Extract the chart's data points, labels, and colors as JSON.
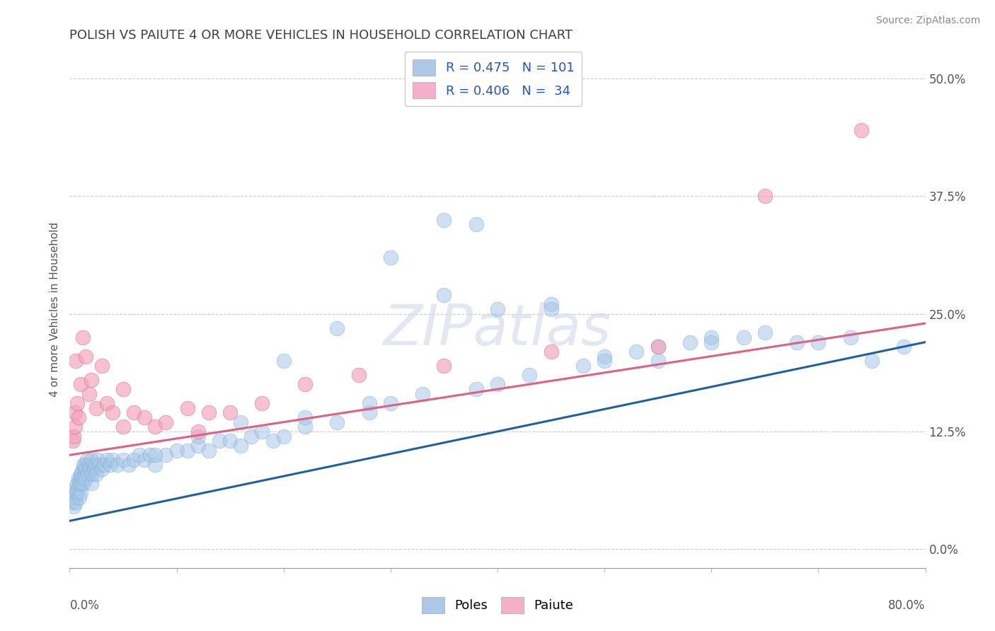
{
  "title": "POLISH VS PAIUTE 4 OR MORE VEHICLES IN HOUSEHOLD CORRELATION CHART",
  "source": "Source: ZipAtlas.com",
  "ylabel": "4 or more Vehicles in Household",
  "yticks": [
    "0.0%",
    "12.5%",
    "25.0%",
    "37.5%",
    "50.0%"
  ],
  "ytick_vals": [
    0.0,
    12.5,
    25.0,
    37.5,
    50.0
  ],
  "xlim": [
    0.0,
    80.0
  ],
  "ylim": [
    -2.0,
    53.0
  ],
  "watermark": "ZIPatlas",
  "title_color": "#3f3f3f",
  "title_fontsize": 13,
  "poles_color": "#a8c8e8",
  "paiute_color": "#f4a0b8",
  "poles_line_color": "#2060a0",
  "paiute_line_color": "#e06080",
  "poles_R": 0.475,
  "poles_N": 101,
  "paiute_R": 0.406,
  "paiute_N": 34,
  "poles_line_x0": 0.0,
  "poles_line_y0": 3.0,
  "poles_line_x1": 80.0,
  "poles_line_y1": 22.0,
  "paiute_line_x0": 0.0,
  "paiute_line_y0": 10.0,
  "paiute_line_x1": 80.0,
  "paiute_line_y1": 24.0,
  "poles_scatter_x": [
    0.3,
    0.4,
    0.5,
    0.5,
    0.6,
    0.6,
    0.7,
    0.7,
    0.8,
    0.8,
    0.9,
    0.9,
    1.0,
    1.0,
    1.0,
    1.1,
    1.1,
    1.2,
    1.2,
    1.3,
    1.3,
    1.4,
    1.4,
    1.5,
    1.5,
    1.6,
    1.7,
    1.8,
    1.9,
    2.0,
    2.0,
    2.1,
    2.2,
    2.3,
    2.4,
    2.5,
    2.6,
    2.8,
    3.0,
    3.2,
    3.5,
    3.8,
    4.0,
    4.5,
    5.0,
    5.5,
    6.0,
    6.5,
    7.0,
    7.5,
    8.0,
    9.0,
    10.0,
    11.0,
    12.0,
    13.0,
    14.0,
    15.0,
    16.0,
    17.0,
    18.0,
    19.0,
    20.0,
    22.0,
    25.0,
    28.0,
    30.0,
    33.0,
    35.0,
    38.0,
    40.0,
    43.0,
    45.0,
    48.0,
    50.0,
    53.0,
    55.0,
    58.0,
    60.0,
    63.0,
    65.0,
    68.0,
    70.0,
    73.0,
    75.0,
    78.0,
    30.0,
    35.0,
    40.0,
    25.0,
    20.0,
    55.0,
    60.0,
    45.0,
    50.0,
    38.0,
    28.0,
    22.0,
    16.0,
    12.0,
    8.0
  ],
  "poles_scatter_y": [
    5.0,
    4.5,
    6.0,
    5.5,
    6.5,
    5.0,
    7.0,
    6.0,
    7.5,
    6.5,
    5.5,
    7.0,
    6.0,
    7.5,
    8.0,
    7.0,
    8.0,
    8.5,
    7.5,
    9.0,
    7.0,
    8.0,
    9.0,
    8.5,
    7.5,
    9.5,
    8.0,
    9.0,
    8.5,
    7.0,
    9.5,
    8.0,
    9.0,
    8.5,
    9.0,
    8.0,
    9.5,
    9.0,
    8.5,
    9.0,
    9.5,
    9.0,
    9.5,
    9.0,
    9.5,
    9.0,
    9.5,
    10.0,
    9.5,
    10.0,
    9.0,
    10.0,
    10.5,
    10.5,
    11.0,
    10.5,
    11.5,
    11.5,
    11.0,
    12.0,
    12.5,
    11.5,
    12.0,
    13.0,
    13.5,
    14.5,
    15.5,
    16.5,
    35.0,
    34.5,
    17.5,
    18.5,
    26.0,
    19.5,
    20.5,
    21.0,
    21.5,
    22.0,
    22.5,
    22.5,
    23.0,
    22.0,
    22.0,
    22.5,
    20.0,
    21.5,
    31.0,
    27.0,
    25.5,
    23.5,
    20.0,
    20.0,
    22.0,
    25.5,
    20.0,
    17.0,
    15.5,
    14.0,
    13.5,
    12.0,
    10.0
  ],
  "paiute_scatter_x": [
    0.3,
    0.4,
    0.5,
    0.5,
    0.6,
    0.7,
    0.8,
    1.0,
    1.2,
    1.5,
    1.8,
    2.0,
    2.5,
    3.0,
    3.5,
    4.0,
    5.0,
    6.0,
    7.0,
    8.0,
    9.0,
    11.0,
    13.0,
    15.0,
    18.0,
    22.0,
    27.0,
    35.0,
    45.0,
    55.0,
    65.0,
    74.0,
    5.0,
    12.0
  ],
  "paiute_scatter_y": [
    11.5,
    12.0,
    14.5,
    13.0,
    20.0,
    15.5,
    14.0,
    17.5,
    22.5,
    20.5,
    16.5,
    18.0,
    15.0,
    19.5,
    15.5,
    14.5,
    17.0,
    14.5,
    14.0,
    13.0,
    13.5,
    15.0,
    14.5,
    14.5,
    15.5,
    17.5,
    18.5,
    19.5,
    21.0,
    21.5,
    37.5,
    44.5,
    13.0,
    12.5
  ]
}
